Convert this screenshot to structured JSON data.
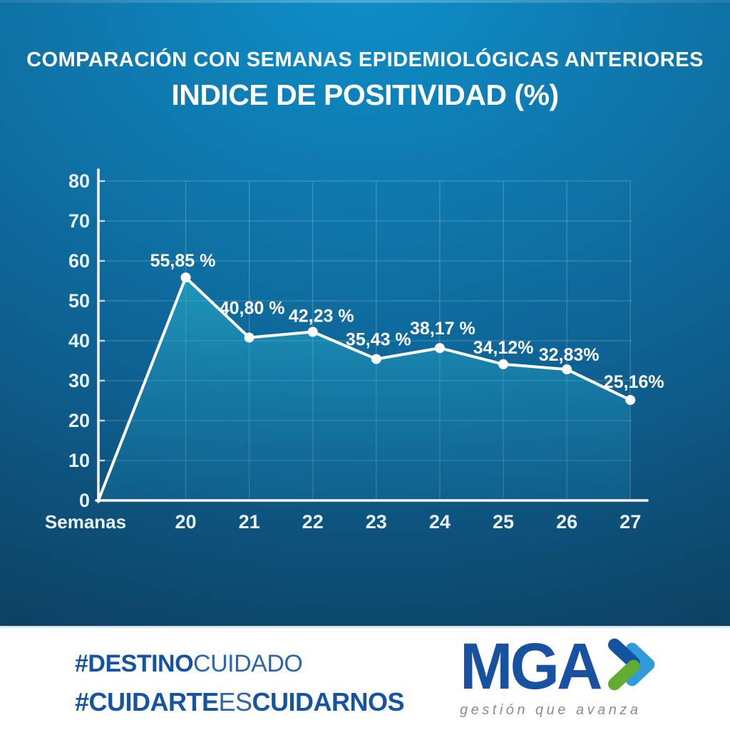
{
  "title": {
    "line1": "COMPARACIÓN CON SEMANAS EPIDEMIOLÓGICAS ANTERIORES",
    "line2": "INDICE DE POSITIVIDAD (%)"
  },
  "chart_data": {
    "type": "line",
    "title": "INDICE DE POSITIVIDAD (%)",
    "x": [
      "20",
      "21",
      "22",
      "23",
      "24",
      "25",
      "26",
      "27"
    ],
    "values": [
      55.85,
      40.8,
      42.23,
      35.43,
      38.17,
      34.12,
      32.83,
      25.16
    ],
    "point_labels": [
      "55,85 %",
      "40,80 %",
      "42,23 %",
      "35,43 %",
      "38,17 %",
      "34,12%",
      "32,83%",
      "25,16%"
    ],
    "xlabel": "Semanas",
    "ylabel": "",
    "ylim": [
      0,
      80
    ],
    "yticks": [
      0,
      10,
      20,
      30,
      40,
      50,
      60,
      70,
      80
    ],
    "grid": true,
    "legend": false,
    "line_starts_at_origin": true,
    "line_color": "#ffffff",
    "marker_color": "#ffffff",
    "area_fill_top": "#2ebbd2",
    "area_fill_bottom": "#1687b3",
    "tick_text_color": "#e8f3f9",
    "label_text_color": "#ffffff"
  },
  "footer": {
    "hashtag1": {
      "part1": "#DESTINO",
      "part2": "CUIDADO"
    },
    "hashtag2": {
      "part1": "#CUIDARTE",
      "part2": "ES",
      "part3": "CUIDARNOS"
    },
    "logo": {
      "name": "MGA",
      "tagline": "gestión que avanza"
    }
  },
  "colors": {
    "panel_top": "#0a88c4",
    "panel_bottom": "#0c3a5c",
    "hashtag_blue": "#1b5ca9",
    "logo_blue": "#17519f",
    "tagline_gray": "#8c8c8c",
    "chevron_dark_blue": "#1553a0",
    "chevron_light_blue": "#2e9bdb",
    "chevron_green": "#61ad31"
  }
}
